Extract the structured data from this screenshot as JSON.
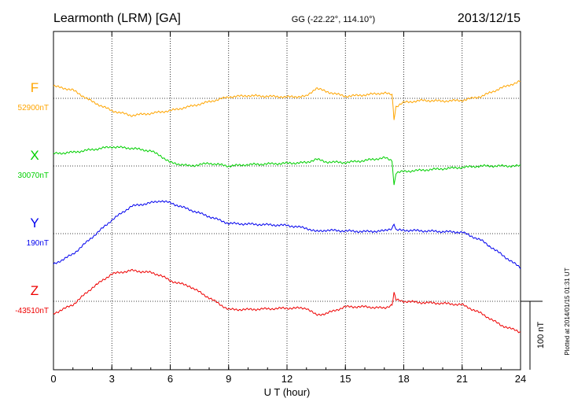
{
  "header": {
    "station": "Learmonth (LRM)  [GA]",
    "coords": "GG (-22.22°, 114.10°)",
    "date": "2013/12/15"
  },
  "footer": {
    "plotted": "Plotted at 2014/01/15 01:31  UT",
    "scale_label": "100 nT"
  },
  "chart_data": {
    "type": "line",
    "xlabel": "U T (hour)",
    "xlim": [
      0,
      24
    ],
    "x_ticks": [
      "0",
      "3",
      "6",
      "9",
      "12",
      "15",
      "18",
      "21",
      "24"
    ],
    "scale_nT": 100,
    "x": [
      0,
      1,
      2,
      3,
      4,
      5,
      5.5,
      6,
      7,
      8,
      9,
      10,
      11,
      12,
      13,
      13.5,
      14,
      15,
      16,
      17,
      17.4,
      17.5,
      17.6,
      18,
      19,
      20,
      21,
      22,
      23,
      24
    ],
    "series": [
      {
        "name": "F",
        "baseline_label": "52900nT",
        "color": "#FFA500",
        "baseline": 0,
        "values": [
          18,
          12,
          -5,
          -18,
          -25,
          -22,
          -20,
          -18,
          -12,
          -5,
          2,
          4,
          3,
          2,
          3,
          15,
          10,
          3,
          5,
          8,
          5,
          -30,
          -12,
          -6,
          -3,
          -4,
          -3,
          3,
          15,
          25
        ]
      },
      {
        "name": "X",
        "baseline_label": "30070nT",
        "color": "#00D000",
        "baseline": 0,
        "values": [
          18,
          20,
          24,
          28,
          26,
          22,
          15,
          5,
          0,
          4,
          0,
          2,
          3,
          4,
          5,
          10,
          6,
          5,
          8,
          12,
          8,
          -28,
          -10,
          -8,
          -6,
          -4,
          -2,
          0,
          0,
          0
        ]
      },
      {
        "name": "Y",
        "baseline_label": "190nT",
        "color": "#0000EE",
        "baseline": 0,
        "values": [
          -45,
          -30,
          -5,
          20,
          40,
          45,
          48,
          45,
          35,
          25,
          15,
          14,
          13,
          12,
          8,
          3,
          5,
          4,
          3,
          4,
          8,
          15,
          5,
          5,
          4,
          3,
          2,
          -10,
          -30,
          -50
        ]
      },
      {
        "name": "Z",
        "baseline_label": "-43510nT",
        "color": "#EE0000",
        "baseline": 0,
        "values": [
          -18,
          -5,
          20,
          40,
          45,
          42,
          38,
          30,
          22,
          5,
          -12,
          -12,
          -11,
          -10,
          -10,
          -20,
          -18,
          -8,
          -8,
          -10,
          -5,
          12,
          2,
          0,
          -2,
          -3,
          -5,
          -18,
          -35,
          -45
        ]
      }
    ]
  }
}
